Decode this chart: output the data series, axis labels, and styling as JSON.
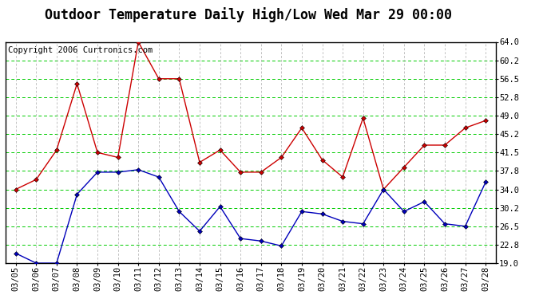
{
  "title": "Outdoor Temperature Daily High/Low Wed Mar 29 00:00",
  "copyright": "Copyright 2006 Curtronics.com",
  "dates": [
    "03/05",
    "03/06",
    "03/07",
    "03/08",
    "03/09",
    "03/10",
    "03/11",
    "03/12",
    "03/13",
    "03/14",
    "03/15",
    "03/16",
    "03/17",
    "03/18",
    "03/19",
    "03/20",
    "03/21",
    "03/22",
    "03/23",
    "03/24",
    "03/25",
    "03/26",
    "03/27",
    "03/28"
  ],
  "high": [
    34.0,
    36.0,
    42.0,
    55.5,
    41.5,
    40.5,
    64.0,
    56.5,
    56.5,
    39.5,
    42.0,
    37.5,
    37.5,
    40.5,
    46.5,
    40.0,
    36.5,
    48.5,
    34.0,
    38.5,
    43.0,
    43.0,
    46.5,
    48.0
  ],
  "low": [
    21.0,
    19.0,
    19.0,
    33.0,
    37.5,
    37.5,
    38.0,
    36.5,
    29.5,
    25.5,
    30.5,
    24.0,
    23.5,
    22.5,
    29.5,
    29.0,
    27.5,
    27.0,
    34.0,
    29.5,
    31.5,
    27.0,
    26.5,
    35.5
  ],
  "ylim_min": 19.0,
  "ylim_max": 64.0,
  "ytick_values": [
    19.0,
    22.8,
    26.5,
    30.2,
    34.0,
    37.8,
    41.5,
    45.2,
    49.0,
    52.8,
    56.5,
    60.2,
    64.0
  ],
  "ytick_labels": [
    "19.0",
    "22.8",
    "26.5",
    "30.2",
    "34.0",
    "37.8",
    "41.5",
    "45.2",
    "49.0",
    "52.8",
    "56.5",
    "60.2",
    "64.0"
  ],
  "high_color": "#cc0000",
  "low_color": "#0000bb",
  "outer_bg": "#ffffff",
  "plot_bg": "#ffffff",
  "grid_color_h": "#00cc00",
  "grid_color_v": "#aaaaaa",
  "title_bg": "#ffffff",
  "title_fontsize": 12,
  "copyright_fontsize": 7.5,
  "tick_fontsize": 7.5,
  "marker": "D",
  "markersize": 3
}
